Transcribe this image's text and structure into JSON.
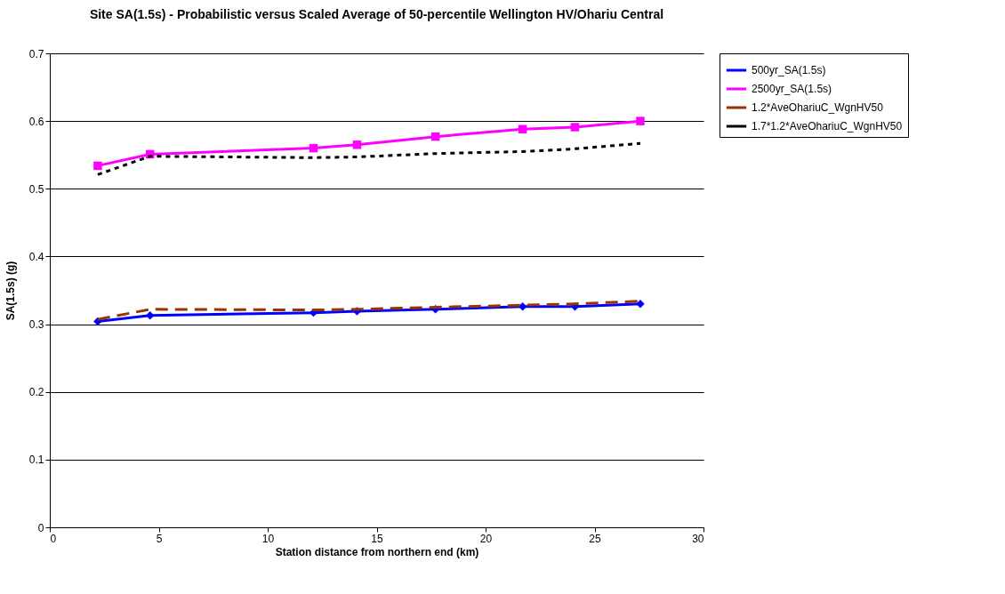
{
  "chart_data": {
    "type": "line",
    "title": "Site SA(1.5s) - Probabilistic versus Scaled Average of 50-percentile Wellington HV/Ohariu Central",
    "xlabel": "Station distance from northern end (km)",
    "ylabel": "SA(1.5s) (g)",
    "x": [
      2.2,
      4.6,
      12.1,
      14.1,
      17.7,
      21.7,
      24.1,
      27.1
    ],
    "xlim": [
      0,
      30
    ],
    "xticks": [
      0,
      5,
      10,
      15,
      20,
      25,
      30
    ],
    "ylim": [
      0,
      0.7
    ],
    "yticks": [
      0,
      0.1,
      0.2,
      0.3,
      0.4,
      0.5,
      0.6,
      0.7
    ],
    "grid": "y",
    "legend": "right",
    "series": [
      {
        "name": "500yr_SA(1.5s)",
        "color": "#0000ff",
        "marker": "diamond",
        "line_style": "solid",
        "values": [
          0.304,
          0.313,
          0.317,
          0.319,
          0.322,
          0.326,
          0.326,
          0.33
        ]
      },
      {
        "name": "2500yr_SA(1.5s)",
        "color": "#ff00ff",
        "marker": "square",
        "line_style": "solid",
        "values": [
          0.534,
          0.551,
          0.56,
          0.565,
          0.577,
          0.588,
          0.591,
          0.6
        ]
      },
      {
        "name": "1.2*AveOhariuC_WgnHV50",
        "color": "#993300",
        "marker": "none",
        "line_style": "dashed",
        "values": [
          0.307,
          0.322,
          0.321,
          0.322,
          0.325,
          0.328,
          0.33,
          0.334
        ]
      },
      {
        "name": "1.7*1.2*AveOhariuC_WgnHV50",
        "color": "#000000",
        "marker": "none",
        "line_style": "dotted",
        "values": [
          0.521,
          0.548,
          0.546,
          0.547,
          0.552,
          0.555,
          0.559,
          0.567
        ]
      }
    ]
  }
}
